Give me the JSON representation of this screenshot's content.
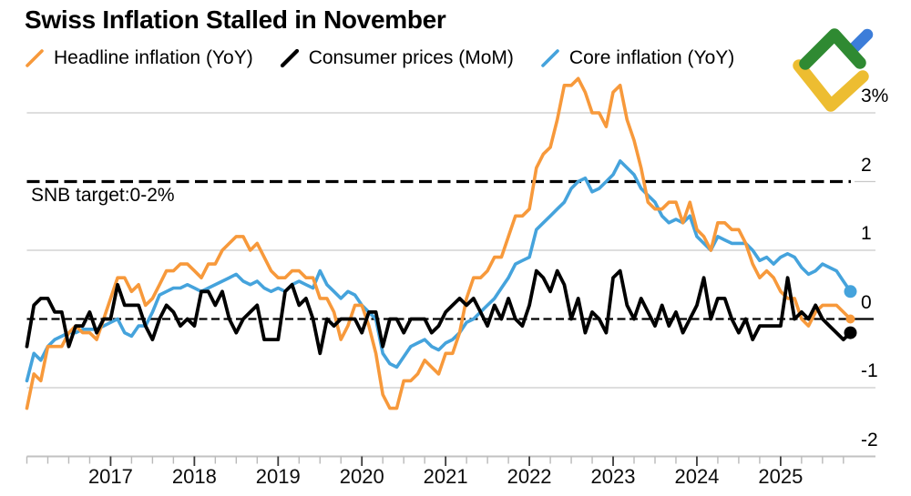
{
  "title": "Swiss Inflation Stalled in November",
  "legend": {
    "items": [
      {
        "label": "Headline inflation (YoY)",
        "series": "headline"
      },
      {
        "label": "Consumer prices (MoM)",
        "series": "mom"
      },
      {
        "label": "Core inflation (YoY)",
        "series": "core"
      }
    ]
  },
  "annotations": {
    "snb_target_label": "SNB target:0-2%"
  },
  "colors": {
    "headline": "#F7993B",
    "mom": "#000000",
    "core": "#45A3DC",
    "grid": "#c9c9c9",
    "axis": "#c2c2c2",
    "tick_minor": "#b9b9b9",
    "tick_major": "#3a3a3a",
    "reference": "#000000",
    "text": "#000000",
    "background": "#ffffff",
    "logo_green": "#2F8A32",
    "logo_yellow": "#EDBD31",
    "logo_blue": "#3C7DD9"
  },
  "y_axis": {
    "tick_values": [
      3,
      2,
      1,
      0,
      -1,
      -2
    ],
    "tick_labels": [
      "3%",
      "2",
      "1",
      "0",
      "-1",
      "-2"
    ]
  },
  "x_axis": {
    "year_labels": [
      "2017",
      "2018",
      "2019",
      "2020",
      "2021",
      "2022",
      "2023",
      "2024",
      "2025"
    ]
  },
  "chart_data": {
    "type": "line",
    "title": "Swiss Inflation Stalled in November",
    "x_frequency": "monthly",
    "x_start": "2016-01",
    "x_end": "2025-11",
    "unit": "%",
    "ylim": [
      -2,
      3
    ],
    "grid": "horizontal",
    "legend_position": "top",
    "reference_lines": [
      {
        "value": 2,
        "style": "bold-dashed",
        "label": "SNB target:0-2%"
      },
      {
        "value": 0,
        "style": "thin-dashed",
        "label": ""
      }
    ],
    "series": [
      {
        "name": "Core inflation (YoY)",
        "color_key": "core",
        "end_marker_radius": 7,
        "values": [
          -0.9,
          -0.5,
          -0.6,
          -0.4,
          -0.3,
          -0.25,
          -0.2,
          -0.2,
          -0.15,
          -0.15,
          -0.15,
          -0.1,
          -0.05,
          0.0,
          -0.2,
          -0.25,
          -0.1,
          -0.1,
          0.1,
          0.35,
          0.4,
          0.45,
          0.45,
          0.5,
          0.45,
          0.4,
          0.45,
          0.5,
          0.55,
          0.6,
          0.65,
          0.55,
          0.5,
          0.55,
          0.45,
          0.4,
          0.45,
          0.4,
          0.5,
          0.55,
          0.5,
          0.45,
          0.7,
          0.5,
          0.4,
          0.3,
          0.4,
          0.35,
          0.2,
          0.1,
          0.0,
          -0.5,
          -0.65,
          -0.7,
          -0.55,
          -0.4,
          -0.35,
          -0.3,
          -0.4,
          -0.45,
          -0.35,
          -0.3,
          -0.2,
          -0.05,
          0.0,
          0.1,
          0.2,
          0.3,
          0.45,
          0.6,
          0.8,
          0.85,
          0.9,
          1.3,
          1.4,
          1.5,
          1.6,
          1.7,
          1.9,
          2.0,
          2.05,
          1.85,
          1.9,
          2.0,
          2.1,
          2.3,
          2.2,
          2.1,
          1.9,
          1.8,
          1.7,
          1.5,
          1.4,
          1.45,
          1.4,
          1.5,
          1.2,
          1.1,
          1.0,
          1.2,
          1.15,
          1.1,
          1.1,
          1.1,
          1.0,
          0.85,
          0.9,
          0.8,
          0.9,
          0.95,
          0.9,
          0.75,
          0.65,
          0.7,
          0.8,
          0.75,
          0.7,
          0.55,
          0.4
        ]
      },
      {
        "name": "Headline inflation (YoY)",
        "color_key": "headline",
        "end_marker_radius": 5,
        "values": [
          -1.3,
          -0.8,
          -0.9,
          -0.4,
          -0.4,
          -0.4,
          -0.2,
          -0.1,
          -0.2,
          -0.2,
          -0.3,
          0.0,
          0.3,
          0.6,
          0.6,
          0.4,
          0.5,
          0.2,
          0.3,
          0.5,
          0.7,
          0.7,
          0.8,
          0.8,
          0.7,
          0.6,
          0.8,
          0.8,
          1.0,
          1.1,
          1.2,
          1.2,
          1.0,
          1.1,
          0.9,
          0.7,
          0.6,
          0.6,
          0.7,
          0.7,
          0.6,
          0.6,
          0.3,
          0.3,
          0.1,
          -0.3,
          -0.1,
          0.2,
          0.2,
          -0.1,
          -0.5,
          -1.1,
          -1.3,
          -1.3,
          -0.9,
          -0.9,
          -0.8,
          -0.6,
          -0.7,
          -0.8,
          -0.5,
          -0.5,
          -0.2,
          0.3,
          0.6,
          0.6,
          0.7,
          0.9,
          0.9,
          1.2,
          1.5,
          1.5,
          1.6,
          2.2,
          2.4,
          2.5,
          2.9,
          3.4,
          3.4,
          3.5,
          3.3,
          3.0,
          3.0,
          2.8,
          3.3,
          3.4,
          2.9,
          2.6,
          2.2,
          1.7,
          1.6,
          1.6,
          1.7,
          1.7,
          1.4,
          1.7,
          1.3,
          1.2,
          1.0,
          1.4,
          1.4,
          1.3,
          1.3,
          1.1,
          0.8,
          0.6,
          0.7,
          0.6,
          0.4,
          0.3,
          0.3,
          0.0,
          -0.1,
          0.1,
          0.2,
          0.2,
          0.2,
          0.1,
          0.0
        ]
      },
      {
        "name": "Consumer prices (MoM)",
        "color_key": "mom",
        "end_marker_radius": 7,
        "values": [
          -0.4,
          0.2,
          0.3,
          0.3,
          0.1,
          0.1,
          -0.4,
          -0.1,
          -0.1,
          0.1,
          -0.2,
          0.0,
          0.0,
          0.5,
          0.2,
          0.2,
          0.2,
          -0.1,
          -0.3,
          0.0,
          0.2,
          0.1,
          -0.1,
          0.0,
          -0.1,
          0.4,
          0.4,
          0.2,
          0.4,
          0.0,
          -0.2,
          0.0,
          0.1,
          0.2,
          -0.3,
          -0.3,
          -0.3,
          0.4,
          0.5,
          0.2,
          0.3,
          0.0,
          -0.5,
          0.0,
          -0.1,
          0.0,
          0.0,
          0.0,
          -0.2,
          0.1,
          0.1,
          -0.4,
          0.0,
          0.0,
          -0.2,
          0.0,
          0.0,
          0.0,
          -0.2,
          -0.1,
          0.1,
          0.2,
          0.3,
          0.2,
          0.3,
          0.1,
          -0.1,
          0.2,
          0.0,
          0.3,
          0.0,
          -0.1,
          0.2,
          0.7,
          0.6,
          0.4,
          0.7,
          0.5,
          0.0,
          0.3,
          -0.2,
          0.1,
          0.0,
          -0.2,
          0.6,
          0.7,
          0.2,
          0.0,
          0.3,
          0.1,
          -0.1,
          0.2,
          -0.1,
          0.1,
          -0.2,
          0.0,
          0.2,
          0.6,
          0.0,
          0.3,
          0.3,
          0.0,
          -0.2,
          0.0,
          -0.3,
          -0.1,
          -0.1,
          -0.1,
          -0.1,
          0.6,
          0.0,
          0.1,
          0.0,
          0.2,
          0.0,
          -0.1,
          -0.2,
          -0.3,
          -0.2
        ]
      }
    ]
  }
}
